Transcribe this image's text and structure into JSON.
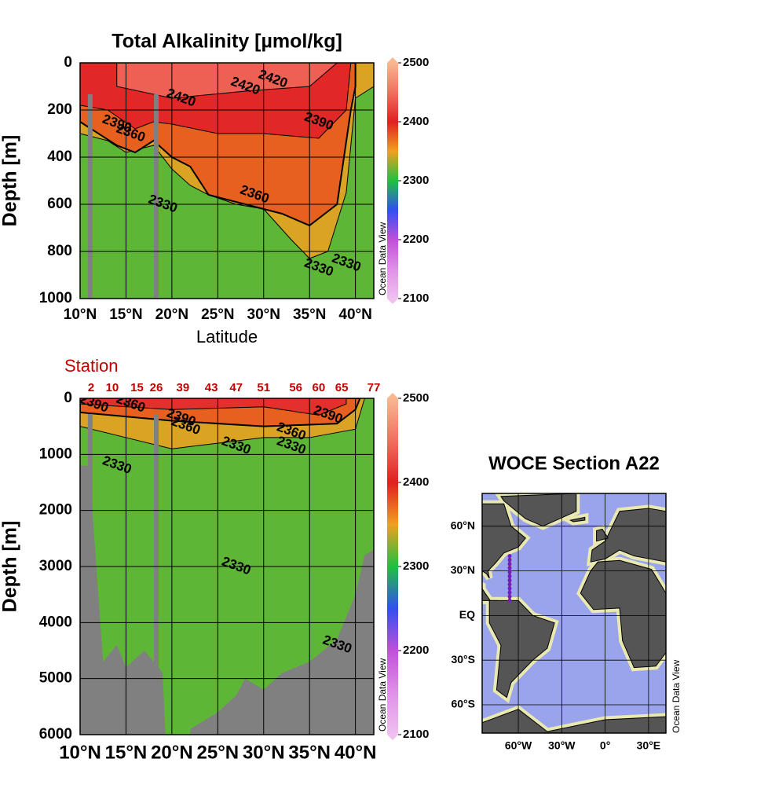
{
  "chart_data": [
    {
      "type": "section",
      "title": "Total Alkalinity [µmol/kg]",
      "xlabel": "Latitude",
      "ylabel": "Depth [m]",
      "xlim": [
        10,
        42
      ],
      "ylim": [
        0,
        1000
      ],
      "inverted_y": true,
      "grid": true,
      "xticks": [
        {
          "value": 10,
          "label": "10°N"
        },
        {
          "value": 15,
          "label": "15°N"
        },
        {
          "value": 20,
          "label": "20°N"
        },
        {
          "value": 25,
          "label": "25°N"
        },
        {
          "value": 30,
          "label": "30°N"
        },
        {
          "value": 35,
          "label": "35°N"
        },
        {
          "value": 40,
          "label": "40°N"
        }
      ],
      "yticks": [
        0,
        200,
        400,
        600,
        800,
        1000
      ],
      "contour_levels": [
        2330,
        2360,
        2390,
        2420
      ],
      "colorbar": {
        "lim": [
          2100,
          2500
        ],
        "ticks": [
          2100,
          2200,
          2300,
          2400,
          2500
        ]
      },
      "colormap": [
        "#f0c0f0",
        "#e090e8",
        "#c050d8",
        "#3050f0",
        "#20c040",
        "#f0a020",
        "#e02020",
        "#f07060",
        "#f8b890"
      ],
      "watermark": "Ocean Data View"
    },
    {
      "type": "section",
      "station_title": "Station",
      "stations": [
        2,
        10,
        15,
        26,
        39,
        43,
        47,
        51,
        56,
        60,
        65,
        77
      ],
      "ylabel": "Depth [m]",
      "xlim": [
        10,
        42
      ],
      "ylim": [
        0,
        6000
      ],
      "inverted_y": true,
      "grid": true,
      "xticks": [
        {
          "value": 10,
          "label": "10°N"
        },
        {
          "value": 15,
          "label": "15°N"
        },
        {
          "value": 20,
          "label": "20°N"
        },
        {
          "value": 25,
          "label": "25°N"
        },
        {
          "value": 30,
          "label": "30°N"
        },
        {
          "value": 35,
          "label": "35°N"
        },
        {
          "value": 40,
          "label": "40°N"
        }
      ],
      "yticks": [
        0,
        1000,
        2000,
        3000,
        4000,
        5000,
        6000
      ],
      "contour_levels": [
        2330,
        2360,
        2390
      ],
      "colorbar": {
        "lim": [
          2100,
          2500
        ],
        "ticks": [
          2100,
          2200,
          2300,
          2400,
          2500
        ]
      },
      "colormap": [
        "#f0c0f0",
        "#e090e8",
        "#c050d8",
        "#3050f0",
        "#20c040",
        "#f0a020",
        "#e02020",
        "#f07060",
        "#f8b890"
      ],
      "watermark": "Ocean Data View"
    },
    {
      "type": "map",
      "title": "WOCE Section A22",
      "xlim": [
        -85,
        42
      ],
      "ylim": [
        -79,
        82
      ],
      "xticks": [
        {
          "value": -60,
          "label": "60°W"
        },
        {
          "value": -30,
          "label": "30°W"
        },
        {
          "value": 0,
          "label": "0°"
        },
        {
          "value": 30,
          "label": "30°E"
        }
      ],
      "yticks": [
        {
          "value": 60,
          "label": "60°N"
        },
        {
          "value": 30,
          "label": "30°N"
        },
        {
          "value": 0,
          "label": "EQ"
        },
        {
          "value": -30,
          "label": "30°S"
        },
        {
          "value": -60,
          "label": "60°S"
        }
      ],
      "section": {
        "lon": -66,
        "lat": [
          10,
          40
        ]
      },
      "watermark": "Ocean Data View"
    }
  ]
}
